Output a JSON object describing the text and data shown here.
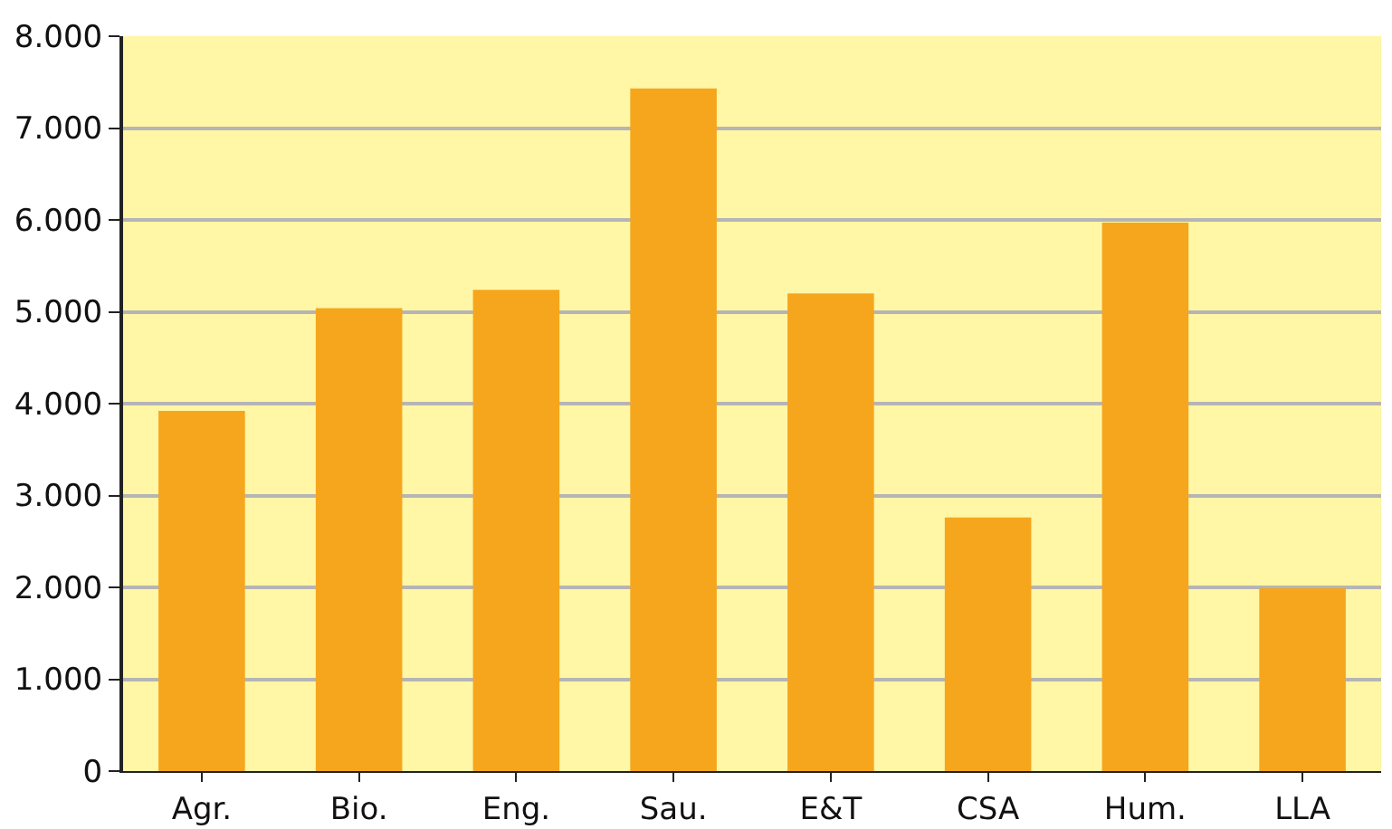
{
  "chart_data": {
    "type": "bar",
    "categories": [
      "Agr.",
      "Bio.",
      "Eng.",
      "Sau.",
      "E&T",
      "CSA",
      "Hum.",
      "LLA"
    ],
    "values": [
      3920,
      5040,
      5240,
      7430,
      5200,
      2760,
      5970,
      1990
    ],
    "color": "#f6a61c",
    "ylim": [
      0,
      8000
    ],
    "yticks": [
      {
        "value": 0,
        "label": "0"
      },
      {
        "value": 1000,
        "label": "1.000"
      },
      {
        "value": 2000,
        "label": "2.000"
      },
      {
        "value": 3000,
        "label": "3.000"
      },
      {
        "value": 4000,
        "label": "4.000"
      },
      {
        "value": 5000,
        "label": "5.000"
      },
      {
        "value": 6000,
        "label": "6.000"
      },
      {
        "value": 7000,
        "label": "7.000"
      },
      {
        "value": 8000,
        "label": "8.000"
      }
    ],
    "grid": "y"
  }
}
